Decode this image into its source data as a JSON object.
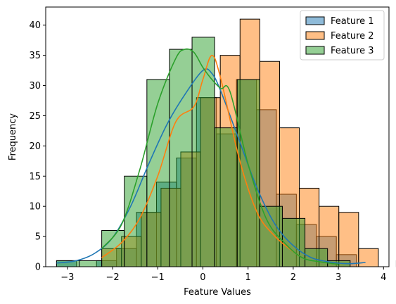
{
  "chart_data": {
    "type": "histogram",
    "xlabel": "Feature Values",
    "ylabel": "Frequency",
    "xlim": [
      -3.48,
      4.12
    ],
    "ylim": [
      0,
      43
    ],
    "xticks": [
      -3,
      -2,
      -1,
      0,
      1,
      2,
      3,
      4
    ],
    "yticks": [
      0,
      5,
      10,
      15,
      20,
      25,
      30,
      35,
      40
    ],
    "legend_position": "top-right",
    "grid": false,
    "series": [
      {
        "name": "Feature 1",
        "color": "#1f77b4",
        "bin_start": -3.24,
        "bin_width": 0.4425,
        "counts": [
          1,
          0,
          1,
          3,
          9,
          14,
          18,
          28,
          22,
          31,
          26,
          12,
          7,
          5,
          2,
          0,
          0,
          1
        ],
        "kde_x": [
          -3.24,
          -2.8,
          -2.4,
          -2.0,
          -1.6,
          -1.2,
          -0.8,
          -0.4,
          0.0,
          0.2,
          0.4,
          0.8,
          1.2,
          1.6,
          2.0,
          2.4,
          2.8,
          3.2,
          3.6
        ],
        "kde_y": [
          0.6,
          1.0,
          2.2,
          4.8,
          10.0,
          17.0,
          23.5,
          28.5,
          32.5,
          32.0,
          29.0,
          21.0,
          13.0,
          7.0,
          3.5,
          1.5,
          0.8,
          0.5,
          0.7
        ]
      },
      {
        "name": "Feature 2",
        "color": "#ff7f0e",
        "bin_start": -2.24,
        "bin_width": 0.4375,
        "counts": [
          3,
          5,
          9,
          13,
          19,
          28,
          35,
          41,
          34,
          23,
          13,
          10,
          9,
          3
        ],
        "kde_x": [
          -2.24,
          -1.8,
          -1.4,
          -1.0,
          -0.6,
          -0.2,
          0.0,
          0.2,
          0.4,
          0.8,
          1.2,
          1.6,
          2.0,
          2.2
        ],
        "kde_y": [
          1.5,
          4.0,
          8.0,
          15.0,
          24.0,
          26.5,
          31.0,
          35.0,
          31.0,
          18.0,
          9.0,
          5.0,
          2.5,
          1.5
        ]
      },
      {
        "name": "Feature 3",
        "color": "#2ca02c",
        "bin_start": -3.24,
        "bin_width": 0.5,
        "counts": [
          1,
          1,
          6,
          15,
          31,
          36,
          38,
          23,
          31,
          10,
          8,
          3,
          1
        ],
        "kde_x": [
          -2.24,
          -1.8,
          -1.4,
          -1.0,
          -0.6,
          -0.4,
          -0.2,
          0.0,
          0.2,
          0.4,
          0.6,
          1.0,
          1.4,
          1.8,
          2.2,
          2.6,
          3.0
        ],
        "kde_y": [
          3.0,
          7.0,
          16.0,
          27.0,
          34.5,
          36.0,
          35.5,
          33.0,
          31.0,
          29.5,
          29.0,
          17.0,
          8.0,
          4.0,
          1.5,
          0.8,
          0.4
        ]
      }
    ]
  }
}
